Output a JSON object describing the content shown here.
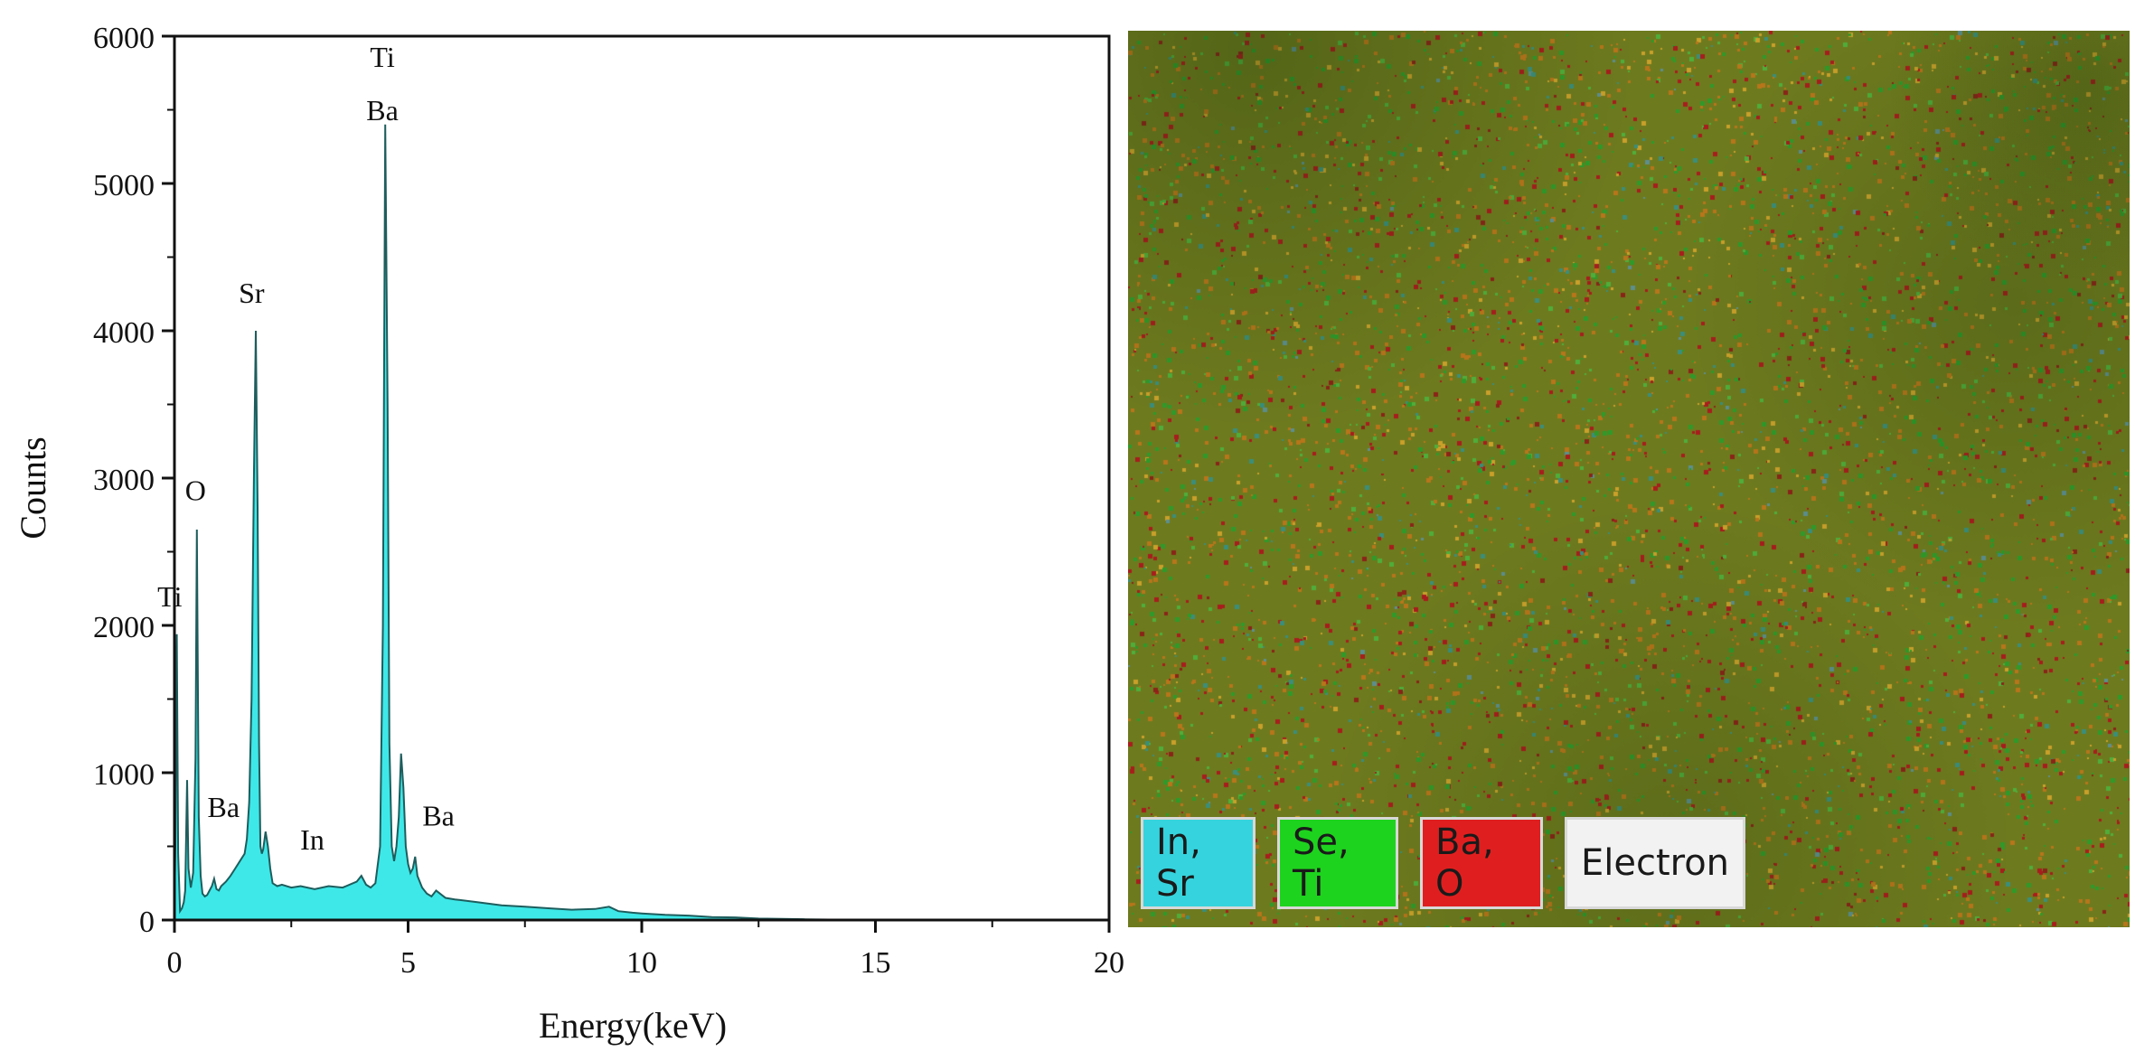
{
  "chart_data": {
    "type": "area",
    "xlabel": "Energy(keV)",
    "ylabel": "Counts",
    "xlim": [
      0,
      20
    ],
    "ylim": [
      0,
      6000
    ],
    "x_ticks": [
      0,
      5,
      10,
      15,
      20
    ],
    "y_ticks": [
      0,
      1000,
      2000,
      3000,
      4000,
      5000,
      6000
    ],
    "fill_color": "#3ee8e8",
    "line_color": "#1e5d5d",
    "x": [
      0,
      0.02,
      0.05,
      0.08,
      0.12,
      0.16,
      0.2,
      0.23,
      0.27,
      0.3,
      0.35,
      0.4,
      0.45,
      0.48,
      0.52,
      0.56,
      0.6,
      0.65,
      0.7,
      0.75,
      0.8,
      0.85,
      0.9,
      0.95,
      1.0,
      1.1,
      1.2,
      1.3,
      1.4,
      1.5,
      1.55,
      1.6,
      1.65,
      1.7,
      1.74,
      1.78,
      1.81,
      1.84,
      1.87,
      1.9,
      1.95,
      2.0,
      2.05,
      2.1,
      2.2,
      2.3,
      2.5,
      2.7,
      3.0,
      3.3,
      3.6,
      3.9,
      4.0,
      4.1,
      4.2,
      4.3,
      4.4,
      4.46,
      4.51,
      4.56,
      4.6,
      4.65,
      4.7,
      4.75,
      4.8,
      4.85,
      4.9,
      4.95,
      5.0,
      5.05,
      5.1,
      5.15,
      5.2,
      5.3,
      5.4,
      5.5,
      5.6,
      5.8,
      6.0,
      6.5,
      7.0,
      7.5,
      8.0,
      8.5,
      9.0,
      9.3,
      9.5,
      9.8,
      10.0,
      10.5,
      11.0,
      11.5,
      12.0,
      12.5,
      13.0,
      13.5,
      14.0,
      14.5,
      15.0,
      15.5,
      16.0
    ],
    "values": [
      100,
      500,
      1940,
      450,
      60,
      80,
      120,
      200,
      950,
      350,
      220,
      320,
      1100,
      2650,
      700,
      300,
      180,
      160,
      170,
      200,
      230,
      280,
      210,
      200,
      230,
      260,
      300,
      350,
      400,
      450,
      550,
      800,
      1500,
      3000,
      4000,
      2800,
      1200,
      500,
      450,
      480,
      600,
      500,
      350,
      250,
      230,
      240,
      220,
      230,
      210,
      230,
      220,
      260,
      300,
      240,
      220,
      250,
      500,
      2000,
      5400,
      3500,
      1200,
      500,
      400,
      500,
      700,
      1130,
      900,
      500,
      380,
      320,
      350,
      430,
      300,
      220,
      180,
      160,
      200,
      150,
      140,
      120,
      100,
      90,
      80,
      70,
      75,
      90,
      60,
      50,
      45,
      35,
      30,
      20,
      18,
      10,
      8,
      5,
      3,
      2,
      1,
      0,
      0
    ],
    "annotations": [
      "Ti",
      "O",
      "Ba",
      "Sr",
      "In",
      "Ti",
      "Ba",
      "Ba"
    ]
  },
  "map": {
    "base_color": "#6e7a1e",
    "legend": [
      {
        "label": "In, Sr",
        "color": "#35d3dd"
      },
      {
        "label": "Se, Ti",
        "color": "#1ed31e"
      },
      {
        "label": "Ba, O",
        "color": "#df1f1f"
      },
      {
        "label": "Electron",
        "color": "#f2f2f2"
      }
    ]
  }
}
